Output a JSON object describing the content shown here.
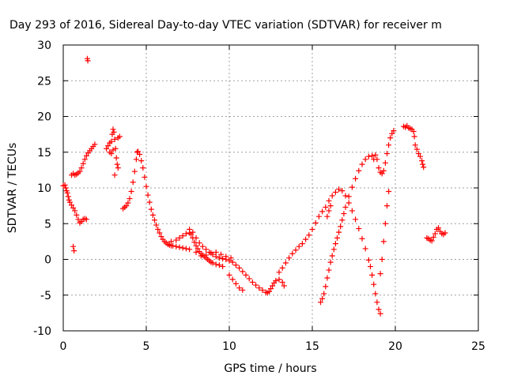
{
  "chart_data": {
    "type": "scatter",
    "title": "Day 293 of 2016, Sidereal Day-to-day VTEC variation (SDTVAR) for receiver m",
    "xlabel": "GPS time / hours",
    "ylabel": "SDTVAR / TECUs",
    "xlim": [
      0,
      25
    ],
    "ylim": [
      -10,
      30
    ],
    "x_ticks": [
      "0",
      "5",
      "10",
      "15",
      "20",
      "25"
    ],
    "y_ticks": [
      "-10",
      "-5",
      "0",
      "5",
      "10",
      "15",
      "20",
      "25",
      "30"
    ],
    "grid": true,
    "legend": "none",
    "marker": "plus",
    "color": "#ff0000",
    "series": [
      {
        "points": [
          [
            0.0,
            10.3
          ],
          [
            0.1,
            10.4
          ],
          [
            0.15,
            10.0
          ],
          [
            0.2,
            9.6
          ],
          [
            0.25,
            9.3
          ],
          [
            0.3,
            8.8
          ],
          [
            0.35,
            8.3
          ],
          [
            0.4,
            8.0
          ],
          [
            0.5,
            7.6
          ],
          [
            0.6,
            7.2
          ],
          [
            0.7,
            6.8
          ],
          [
            0.8,
            6.2
          ],
          [
            0.9,
            5.6
          ],
          [
            1.0,
            5.1
          ],
          [
            1.1,
            5.3
          ],
          [
            1.2,
            5.6
          ],
          [
            1.3,
            5.7
          ],
          [
            1.4,
            5.6
          ],
          [
            0.6,
            1.8
          ],
          [
            0.65,
            1.2
          ],
          [
            0.5,
            11.8
          ],
          [
            0.6,
            12.0
          ],
          [
            0.7,
            11.8
          ],
          [
            0.8,
            11.9
          ],
          [
            0.9,
            12.1
          ],
          [
            1.0,
            12.3
          ],
          [
            1.1,
            12.8
          ],
          [
            1.2,
            13.4
          ],
          [
            1.3,
            14.0
          ],
          [
            1.4,
            14.5
          ],
          [
            1.5,
            14.9
          ],
          [
            1.6,
            15.2
          ],
          [
            1.7,
            15.5
          ],
          [
            1.8,
            15.8
          ],
          [
            1.9,
            16.1
          ],
          [
            1.45,
            28.1
          ],
          [
            1.48,
            27.8
          ],
          [
            2.6,
            15.5
          ],
          [
            2.7,
            15.9
          ],
          [
            2.8,
            16.3
          ],
          [
            2.9,
            16.5
          ],
          [
            2.95,
            17.5
          ],
          [
            3.0,
            18.2
          ],
          [
            3.05,
            17.8
          ],
          [
            3.1,
            16.8
          ],
          [
            3.15,
            15.5
          ],
          [
            3.2,
            14.2
          ],
          [
            3.25,
            13.3
          ],
          [
            3.3,
            12.8
          ],
          [
            3.1,
            11.8
          ],
          [
            3.3,
            17.0
          ],
          [
            3.4,
            17.2
          ],
          [
            2.8,
            15.0
          ],
          [
            2.9,
            14.8
          ],
          [
            3.0,
            15.3
          ],
          [
            3.6,
            7.1
          ],
          [
            3.7,
            7.3
          ],
          [
            3.8,
            7.5
          ],
          [
            3.9,
            7.9
          ],
          [
            4.0,
            8.5
          ],
          [
            4.1,
            9.5
          ],
          [
            4.2,
            10.8
          ],
          [
            4.3,
            12.3
          ],
          [
            4.4,
            14.0
          ],
          [
            4.45,
            15.0
          ],
          [
            4.5,
            15.1
          ],
          [
            4.6,
            14.7
          ],
          [
            4.7,
            13.8
          ],
          [
            4.8,
            12.8
          ],
          [
            4.9,
            11.5
          ],
          [
            5.0,
            10.2
          ],
          [
            5.1,
            9.0
          ],
          [
            5.2,
            8.0
          ],
          [
            5.3,
            7.0
          ],
          [
            5.4,
            6.2
          ],
          [
            5.5,
            5.5
          ],
          [
            5.6,
            4.8
          ],
          [
            5.7,
            4.2
          ],
          [
            5.8,
            3.7
          ],
          [
            5.9,
            3.2
          ],
          [
            6.0,
            2.8
          ],
          [
            6.1,
            2.5
          ],
          [
            6.2,
            2.3
          ],
          [
            6.3,
            2.1
          ],
          [
            6.4,
            2.0
          ],
          [
            6.5,
            1.9
          ],
          [
            6.6,
            1.9
          ],
          [
            6.8,
            1.8
          ],
          [
            7.0,
            1.7
          ],
          [
            7.2,
            1.6
          ],
          [
            7.4,
            1.5
          ],
          [
            7.6,
            1.4
          ],
          [
            6.5,
            2.5
          ],
          [
            6.8,
            2.7
          ],
          [
            7.0,
            3.0
          ],
          [
            7.2,
            3.3
          ],
          [
            7.4,
            3.6
          ],
          [
            7.6,
            3.7
          ],
          [
            7.7,
            3.5
          ],
          [
            7.8,
            3.0
          ],
          [
            7.9,
            2.4
          ],
          [
            8.0,
            1.9
          ],
          [
            8.1,
            1.5
          ],
          [
            8.2,
            1.1
          ],
          [
            8.3,
            0.8
          ],
          [
            8.4,
            0.6
          ],
          [
            8.5,
            0.4
          ],
          [
            8.6,
            0.2
          ],
          [
            8.7,
            0.0
          ],
          [
            8.8,
            -0.2
          ],
          [
            8.9,
            -0.4
          ],
          [
            9.0,
            -0.5
          ],
          [
            9.2,
            -0.7
          ],
          [
            9.4,
            -0.8
          ],
          [
            9.6,
            -1.0
          ],
          [
            7.6,
            4.2
          ],
          [
            7.8,
            3.8
          ],
          [
            8.0,
            3.0
          ],
          [
            8.2,
            2.3
          ],
          [
            8.4,
            1.8
          ],
          [
            8.6,
            1.4
          ],
          [
            8.8,
            1.0
          ],
          [
            9.0,
            0.7
          ],
          [
            9.2,
            0.4
          ],
          [
            9.4,
            0.2
          ],
          [
            9.6,
            0.1
          ],
          [
            9.8,
            0.0
          ],
          [
            10.0,
            -0.2
          ],
          [
            10.2,
            -0.4
          ],
          [
            10.4,
            -0.8
          ],
          [
            10.6,
            -1.2
          ],
          [
            10.8,
            -1.7
          ],
          [
            11.0,
            -2.2
          ],
          [
            11.2,
            -2.7
          ],
          [
            11.4,
            -3.2
          ],
          [
            11.6,
            -3.6
          ],
          [
            11.8,
            -4.0
          ],
          [
            12.0,
            -4.3
          ],
          [
            12.2,
            -4.6
          ],
          [
            12.3,
            -4.7
          ],
          [
            12.4,
            -4.5
          ],
          [
            12.5,
            -4.1
          ],
          [
            12.6,
            -3.7
          ],
          [
            12.7,
            -3.3
          ],
          [
            12.8,
            -3.0
          ],
          [
            13.0,
            -2.8
          ],
          [
            13.2,
            -3.2
          ],
          [
            13.3,
            -3.7
          ],
          [
            10.0,
            -2.2
          ],
          [
            10.2,
            -2.8
          ],
          [
            10.4,
            -3.4
          ],
          [
            10.6,
            -4.0
          ],
          [
            10.8,
            -4.3
          ],
          [
            8.0,
            1.0
          ],
          [
            8.3,
            0.5
          ],
          [
            8.6,
            0.6
          ],
          [
            8.9,
            0.9
          ],
          [
            9.2,
            1.0
          ],
          [
            9.5,
            0.7
          ],
          [
            9.8,
            0.4
          ],
          [
            10.1,
            0.2
          ],
          [
            13.0,
            -1.8
          ],
          [
            13.2,
            -1.2
          ],
          [
            13.4,
            -0.5
          ],
          [
            13.6,
            0.2
          ],
          [
            13.8,
            0.8
          ],
          [
            14.0,
            1.3
          ],
          [
            14.2,
            1.8
          ],
          [
            14.4,
            2.2
          ],
          [
            14.6,
            2.8
          ],
          [
            14.8,
            3.4
          ],
          [
            15.0,
            4.2
          ],
          [
            15.2,
            5.1
          ],
          [
            15.4,
            6.0
          ],
          [
            15.6,
            6.7
          ],
          [
            15.8,
            7.3
          ],
          [
            16.0,
            8.2
          ],
          [
            16.2,
            8.9
          ],
          [
            16.4,
            9.4
          ],
          [
            16.6,
            9.8
          ],
          [
            16.8,
            9.6
          ],
          [
            17.0,
            8.9
          ],
          [
            17.2,
            7.9
          ],
          [
            17.4,
            6.8
          ],
          [
            17.6,
            5.6
          ],
          [
            17.8,
            4.3
          ],
          [
            18.0,
            2.9
          ],
          [
            18.2,
            1.5
          ],
          [
            18.4,
            -0.1
          ],
          [
            18.5,
            -1.0
          ],
          [
            18.6,
            -2.2
          ],
          [
            18.7,
            -3.5
          ],
          [
            18.8,
            -4.8
          ],
          [
            18.9,
            -6.0
          ],
          [
            19.0,
            -7.0
          ],
          [
            19.1,
            -7.6
          ],
          [
            15.5,
            -6.0
          ],
          [
            15.6,
            -5.5
          ],
          [
            15.7,
            -4.8
          ],
          [
            15.8,
            -3.8
          ],
          [
            15.9,
            -2.6
          ],
          [
            16.0,
            -1.5
          ],
          [
            16.1,
            -0.4
          ],
          [
            16.2,
            0.5
          ],
          [
            16.3,
            1.4
          ],
          [
            16.4,
            2.2
          ],
          [
            16.5,
            3.0
          ],
          [
            16.6,
            3.8
          ],
          [
            16.7,
            4.6
          ],
          [
            16.8,
            5.5
          ],
          [
            16.9,
            6.4
          ],
          [
            17.0,
            7.3
          ],
          [
            17.2,
            8.8
          ],
          [
            17.4,
            10.1
          ],
          [
            17.6,
            11.3
          ],
          [
            17.8,
            12.4
          ],
          [
            18.0,
            13.3
          ],
          [
            18.2,
            14.0
          ],
          [
            18.4,
            14.4
          ],
          [
            18.6,
            14.5
          ],
          [
            18.7,
            14.0
          ],
          [
            18.8,
            14.6
          ],
          [
            18.9,
            14.0
          ],
          [
            19.0,
            12.8
          ],
          [
            19.1,
            12.2
          ],
          [
            19.2,
            12.0
          ],
          [
            19.3,
            12.4
          ],
          [
            19.4,
            13.5
          ],
          [
            19.5,
            14.8
          ],
          [
            19.6,
            16.0
          ],
          [
            19.7,
            17.0
          ],
          [
            19.8,
            17.6
          ],
          [
            19.9,
            18.0
          ],
          [
            19.1,
            -2.0
          ],
          [
            19.2,
            0.0
          ],
          [
            19.3,
            2.5
          ],
          [
            19.4,
            5.0
          ],
          [
            19.5,
            7.5
          ],
          [
            19.6,
            9.5
          ],
          [
            15.9,
            6.0
          ],
          [
            16.0,
            6.8
          ],
          [
            16.1,
            7.5
          ],
          [
            20.5,
            18.6
          ],
          [
            20.6,
            18.5
          ],
          [
            20.7,
            18.7
          ],
          [
            20.8,
            18.4
          ],
          [
            20.9,
            18.3
          ],
          [
            21.0,
            18.2
          ],
          [
            21.1,
            17.9
          ],
          [
            21.15,
            17.2
          ],
          [
            21.2,
            16.0
          ],
          [
            21.3,
            15.4
          ],
          [
            21.4,
            14.8
          ],
          [
            21.5,
            14.4
          ],
          [
            21.6,
            13.8
          ],
          [
            21.65,
            13.3
          ],
          [
            21.7,
            12.9
          ],
          [
            21.9,
            3.0
          ],
          [
            22.0,
            2.9
          ],
          [
            22.1,
            2.7
          ],
          [
            22.2,
            2.6
          ],
          [
            22.3,
            3.1
          ],
          [
            22.4,
            3.6
          ],
          [
            22.5,
            4.2
          ],
          [
            22.6,
            4.4
          ],
          [
            22.7,
            3.9
          ],
          [
            22.8,
            3.6
          ],
          [
            22.9,
            3.5
          ],
          [
            23.0,
            3.7
          ]
        ]
      }
    ]
  }
}
